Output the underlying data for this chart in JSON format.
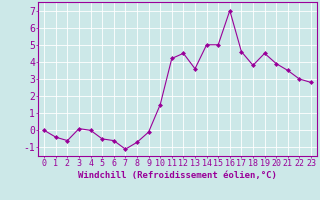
{
  "x": [
    0,
    1,
    2,
    3,
    4,
    5,
    6,
    7,
    8,
    9,
    10,
    11,
    12,
    13,
    14,
    15,
    16,
    17,
    18,
    19,
    20,
    21,
    22,
    23
  ],
  "y": [
    0.0,
    -0.4,
    -0.6,
    0.1,
    0.0,
    -0.5,
    -0.6,
    -1.1,
    -0.7,
    -0.1,
    1.5,
    4.2,
    4.5,
    3.6,
    5.0,
    5.0,
    7.0,
    4.6,
    3.8,
    4.5,
    3.9,
    3.5,
    3.0,
    2.8
  ],
  "line_color": "#990099",
  "marker": "D",
  "marker_size": 2,
  "bg_color": "#cce8e8",
  "grid_color": "#ffffff",
  "xlabel": "Windchill (Refroidissement éolien,°C)",
  "xlabel_color": "#990099",
  "xlabel_fontsize": 6.5,
  "tick_color": "#990099",
  "tick_labelsize": 6,
  "ylim": [
    -1.5,
    7.5
  ],
  "yticks": [
    -1,
    0,
    1,
    2,
    3,
    4,
    5,
    6,
    7
  ],
  "xlim": [
    -0.5,
    23.5
  ],
  "xticks": [
    0,
    1,
    2,
    3,
    4,
    5,
    6,
    7,
    8,
    9,
    10,
    11,
    12,
    13,
    14,
    15,
    16,
    17,
    18,
    19,
    20,
    21,
    22,
    23
  ],
  "spine_color": "#990099",
  "linewidth": 0.8
}
